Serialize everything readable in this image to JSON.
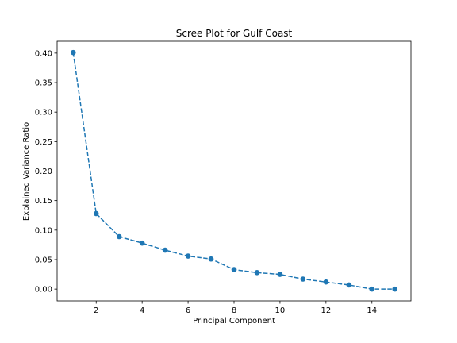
{
  "chart_data": {
    "type": "line",
    "title": "Scree Plot for Gulf Coast",
    "xlabel": "Principal Component",
    "ylabel": "Explained Variance Ratio",
    "xlim": [
      0.3,
      15.7
    ],
    "ylim": [
      -0.02,
      0.42
    ],
    "xticks": [
      2,
      4,
      6,
      8,
      10,
      12,
      14
    ],
    "xtick_labels": [
      "2",
      "4",
      "6",
      "8",
      "10",
      "12",
      "14"
    ],
    "yticks": [
      0.0,
      0.05,
      0.1,
      0.15,
      0.2,
      0.25,
      0.3,
      0.35,
      0.4
    ],
    "ytick_labels": [
      "0.00",
      "0.05",
      "0.10",
      "0.15",
      "0.20",
      "0.25",
      "0.30",
      "0.35",
      "0.40"
    ],
    "grid": false,
    "line_style": "dashed",
    "marker": "circle",
    "color": "#1f77b4",
    "series": [
      {
        "x": [
          1,
          2,
          3,
          4,
          5,
          6,
          7,
          8,
          9,
          10,
          11,
          12,
          13,
          14,
          15
        ],
        "values": [
          0.401,
          0.128,
          0.089,
          0.078,
          0.066,
          0.056,
          0.051,
          0.033,
          0.028,
          0.025,
          0.017,
          0.012,
          0.007,
          0.0,
          0.0
        ]
      }
    ]
  }
}
